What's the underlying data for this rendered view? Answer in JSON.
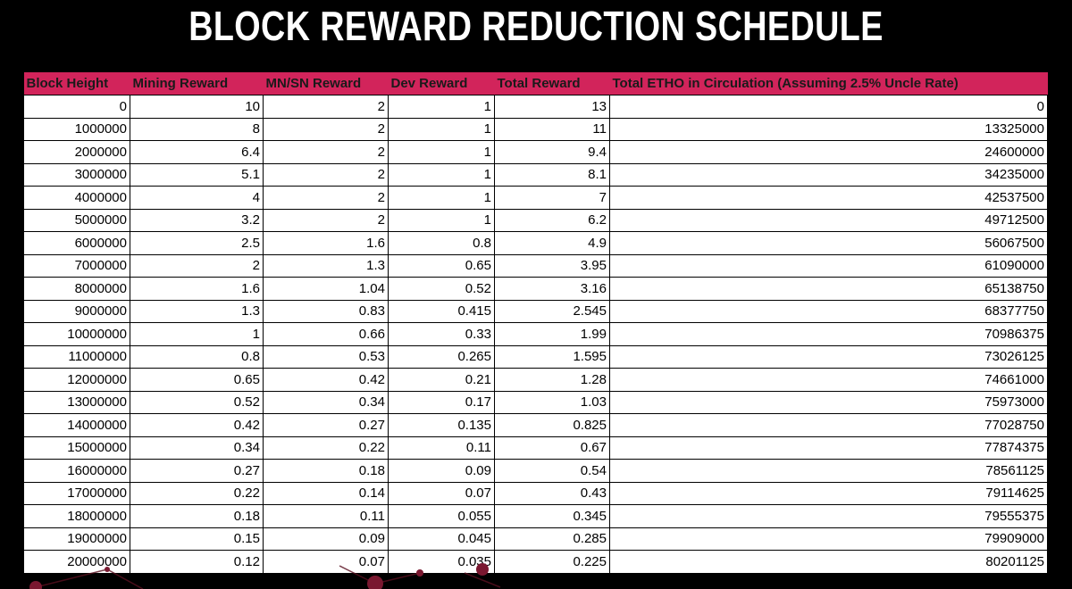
{
  "title": "BLOCK REWARD REDUCTION SCHEDULE",
  "colors": {
    "header_bg": "#d2245b",
    "background": "#000000",
    "cell_bg": "#ffffff"
  },
  "table": {
    "columns": [
      "Block Height",
      "Mining Reward",
      "MN/SN Reward",
      "Dev Reward",
      "Total Reward",
      "Total ETHO in Circulation (Assuming 2.5% Uncle Rate)"
    ],
    "rows": [
      [
        "0",
        "10",
        "2",
        "1",
        "13",
        "0"
      ],
      [
        "1000000",
        "8",
        "2",
        "1",
        "11",
        "13325000"
      ],
      [
        "2000000",
        "6.4",
        "2",
        "1",
        "9.4",
        "24600000"
      ],
      [
        "3000000",
        "5.1",
        "2",
        "1",
        "8.1",
        "34235000"
      ],
      [
        "4000000",
        "4",
        "2",
        "1",
        "7",
        "42537500"
      ],
      [
        "5000000",
        "3.2",
        "2",
        "1",
        "6.2",
        "49712500"
      ],
      [
        "6000000",
        "2.5",
        "1.6",
        "0.8",
        "4.9",
        "56067500"
      ],
      [
        "7000000",
        "2",
        "1.3",
        "0.65",
        "3.95",
        "61090000"
      ],
      [
        "8000000",
        "1.6",
        "1.04",
        "0.52",
        "3.16",
        "65138750"
      ],
      [
        "9000000",
        "1.3",
        "0.83",
        "0.415",
        "2.545",
        "68377750"
      ],
      [
        "10000000",
        "1",
        "0.66",
        "0.33",
        "1.99",
        "70986375"
      ],
      [
        "11000000",
        "0.8",
        "0.53",
        "0.265",
        "1.595",
        "73026125"
      ],
      [
        "12000000",
        "0.65",
        "0.42",
        "0.21",
        "1.28",
        "74661000"
      ],
      [
        "13000000",
        "0.52",
        "0.34",
        "0.17",
        "1.03",
        "75973000"
      ],
      [
        "14000000",
        "0.42",
        "0.27",
        "0.135",
        "0.825",
        "77028750"
      ],
      [
        "15000000",
        "0.34",
        "0.22",
        "0.11",
        "0.67",
        "77874375"
      ],
      [
        "16000000",
        "0.27",
        "0.18",
        "0.09",
        "0.54",
        "78561125"
      ],
      [
        "17000000",
        "0.22",
        "0.14",
        "0.07",
        "0.43",
        "79114625"
      ],
      [
        "18000000",
        "0.18",
        "0.11",
        "0.055",
        "0.345",
        "79555375"
      ],
      [
        "19000000",
        "0.15",
        "0.09",
        "0.045",
        "0.285",
        "79909000"
      ],
      [
        "20000000",
        "0.12",
        "0.07",
        "0.035",
        "0.225",
        "80201125"
      ]
    ]
  }
}
